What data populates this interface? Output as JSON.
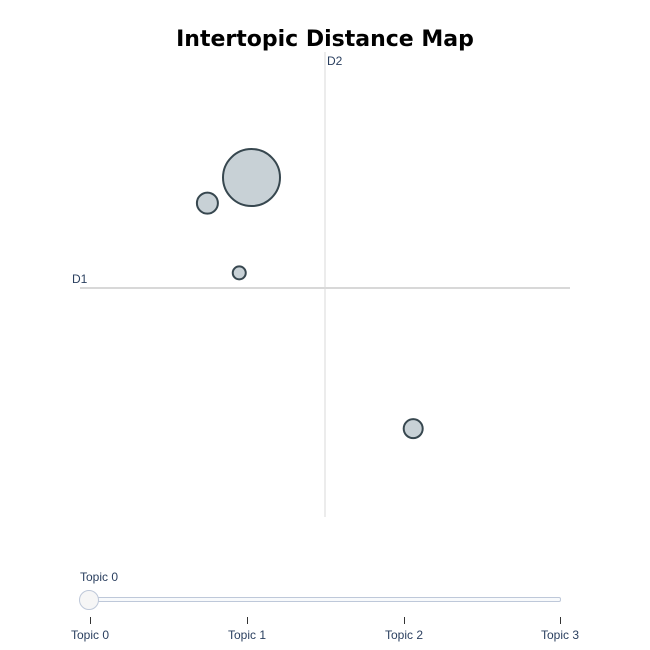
{
  "chart_data": {
    "type": "scatter",
    "title": "Intertopic Distance Map",
    "xlabel": "D1",
    "ylabel": "D2",
    "xlim": [
      -1.0,
      1.0
    ],
    "ylim": [
      -1.0,
      1.0
    ],
    "grid": false,
    "marker_fill": "#b0bec5",
    "marker_line": "#37474f",
    "points": [
      {
        "topic": "Topic 0",
        "x": -0.3,
        "y": 0.46,
        "size": 57
      },
      {
        "topic": "Topic 1",
        "x": -0.48,
        "y": 0.35,
        "size": 21
      },
      {
        "topic": "Topic 2",
        "x": -0.35,
        "y": 0.05,
        "size": 13
      },
      {
        "topic": "Topic 3",
        "x": 0.36,
        "y": -0.62,
        "size": 19
      }
    ]
  },
  "slider": {
    "current_label": "Topic 0",
    "value_index": 0,
    "steps": [
      "Topic 0",
      "Topic 1",
      "Topic 2",
      "Topic 3"
    ]
  }
}
